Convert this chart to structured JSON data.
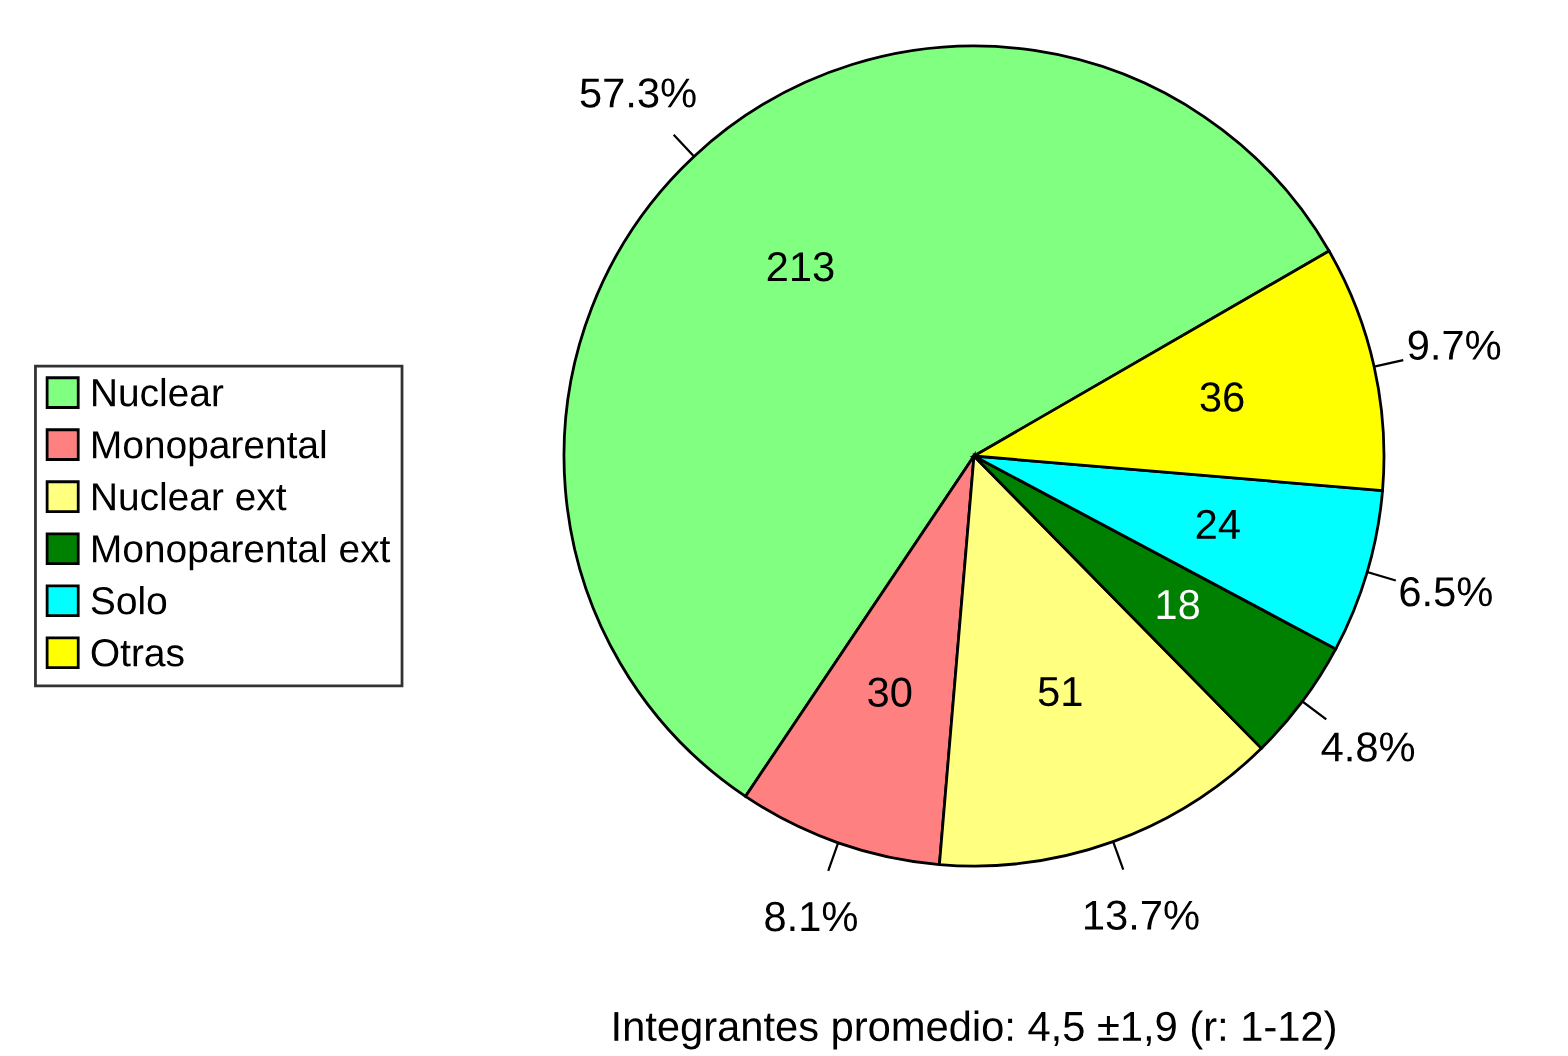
{
  "chart_data": {
    "type": "pie",
    "categories": [
      "Nuclear",
      "Monoparental",
      "Nuclear ext",
      "Monoparental ext",
      "Solo",
      "Otras"
    ],
    "values": [
      213,
      30,
      51,
      18,
      24,
      36
    ],
    "data_labels": true,
    "colors": [
      "#80ff80",
      "#ff8080",
      "#ffff80",
      "#008000",
      "#00ffff",
      "#ffff00"
    ],
    "legend": "left",
    "annotations": [
      {
        "text": "57.3%",
        "x": "Nuclear"
      },
      {
        "text": "8.1%",
        "x": "Monoparental"
      },
      {
        "text": "13.7%",
        "x": "Nuclear ext"
      },
      {
        "text": "4.8%",
        "x": "Monoparental ext"
      },
      {
        "text": "6.5%",
        "x": "Solo"
      },
      {
        "text": "9.7%",
        "x": "Otras"
      },
      "Integrantes promedio: 4,5 ±1,9 (r: 1-12)"
    ]
  }
}
